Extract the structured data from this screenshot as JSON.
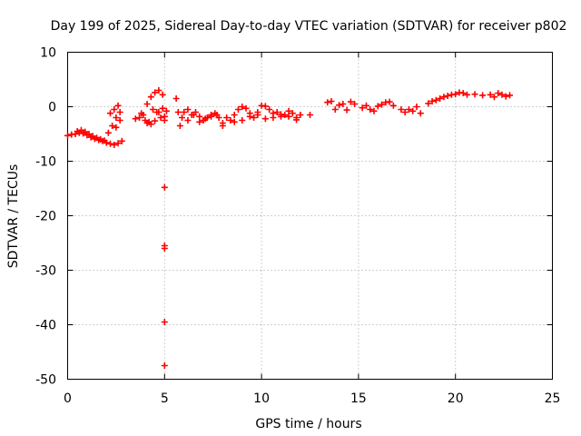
{
  "chart_data": {
    "type": "scatter",
    "title": "Day 199 of 2025, Sidereal Day-to-day VTEC variation (SDTVAR) for receiver p802",
    "xlabel": "GPS time / hours",
    "ylabel": "SDTVAR / TECUs",
    "xlim": [
      0,
      25
    ],
    "ylim": [
      -50,
      10
    ],
    "xticks": [
      0,
      5,
      10,
      15,
      20,
      25
    ],
    "yticks": [
      10,
      0,
      -10,
      -20,
      -30,
      -40,
      -50
    ],
    "grid": true,
    "marker": "plus",
    "color": "#ff0000",
    "series": [
      {
        "x": [
          0.0,
          0.2,
          0.4,
          0.6,
          0.8,
          1.0,
          1.2,
          1.4,
          1.6,
          1.8,
          2.0,
          2.2,
          2.4,
          2.6,
          2.8,
          0.5,
          0.7,
          0.9,
          1.1,
          1.3,
          1.5,
          1.7,
          1.9,
          2.1,
          2.3,
          2.5,
          2.7,
          2.2,
          2.4,
          2.6,
          2.5,
          2.7,
          3.5,
          3.7,
          3.9,
          4.1,
          4.3,
          4.5,
          4.7,
          4.9,
          3.8,
          4.0,
          4.2,
          4.4,
          4.6,
          4.8,
          4.1,
          4.3,
          4.5,
          4.7,
          4.9,
          5.0,
          5.0,
          5.0,
          5.0,
          5.0,
          5.0,
          5.0,
          5.1,
          5.6,
          5.7,
          5.8,
          5.9,
          6.0,
          6.2,
          6.4,
          6.6,
          6.8,
          7.0,
          7.2,
          7.4,
          7.6,
          7.8,
          8.0,
          6.2,
          6.5,
          6.8,
          7.1,
          7.4,
          7.7,
          8.0,
          8.2,
          8.4,
          8.6,
          8.8,
          9.0,
          9.2,
          9.4,
          9.6,
          9.8,
          10.0,
          10.2,
          10.4,
          10.6,
          10.8,
          11.0,
          11.2,
          11.4,
          11.6,
          11.8,
          12.0,
          8.6,
          9.0,
          9.4,
          9.8,
          10.2,
          10.6,
          11.0,
          11.4,
          11.8,
          12.5,
          13.4,
          13.6,
          13.8,
          14.0,
          14.2,
          14.4,
          14.6,
          14.8,
          15.2,
          15.4,
          15.6,
          15.8,
          16.0,
          16.2,
          16.4,
          16.6,
          16.8,
          17.2,
          17.4,
          17.6,
          17.8,
          18.0,
          18.2,
          18.6,
          18.8,
          19.0,
          19.2,
          19.4,
          19.6,
          19.8,
          20.0,
          20.2,
          20.4,
          20.6,
          21.0,
          21.4,
          21.8,
          22.0,
          22.2,
          22.4,
          22.6,
          22.8
        ],
        "y": [
          -5.3,
          -5.1,
          -5.0,
          -4.8,
          -4.9,
          -5.2,
          -5.6,
          -5.9,
          -6.1,
          -6.3,
          -6.6,
          -6.8,
          -7.0,
          -6.7,
          -6.3,
          -4.5,
          -4.3,
          -4.6,
          -5.0,
          -5.4,
          -5.7,
          -6.0,
          -6.2,
          -4.8,
          -3.5,
          -2.0,
          -1.0,
          -1.2,
          -0.5,
          0.2,
          -3.8,
          -2.5,
          -2.2,
          -2.0,
          -1.5,
          0.5,
          1.8,
          2.6,
          3.0,
          2.2,
          -1.2,
          -2.5,
          -2.8,
          -0.5,
          -1.0,
          -2.0,
          -3.0,
          -3.2,
          -2.6,
          -1.0,
          -0.3,
          -14.8,
          -25.5,
          -26.0,
          -39.5,
          -47.5,
          -2.5,
          -1.8,
          -0.8,
          1.5,
          -1.0,
          -3.5,
          -2.0,
          -1.0,
          -2.5,
          -1.5,
          -1.0,
          -1.8,
          -2.5,
          -2.0,
          -1.5,
          -1.2,
          -2.0,
          -3.0,
          -0.5,
          -1.5,
          -2.8,
          -2.2,
          -1.8,
          -1.5,
          -3.5,
          -2.0,
          -2.5,
          -1.5,
          -0.5,
          0.0,
          -0.3,
          -1.2,
          -2.0,
          -1.0,
          0.2,
          0.1,
          -0.5,
          -1.2,
          -1.0,
          -1.8,
          -1.5,
          -0.8,
          -1.2,
          -2.0,
          -1.5,
          -2.8,
          -2.5,
          -1.8,
          -1.5,
          -2.2,
          -2.0,
          -1.4,
          -1.8,
          -2.4,
          -1.5,
          0.8,
          1.0,
          -0.5,
          0.3,
          0.5,
          -0.6,
          0.9,
          0.5,
          -0.2,
          0.2,
          -0.5,
          -0.8,
          0.1,
          0.4,
          0.8,
          0.9,
          0.2,
          -0.5,
          -1.0,
          -0.5,
          -0.8,
          0.0,
          -1.2,
          0.6,
          1.0,
          1.2,
          1.5,
          1.8,
          2.0,
          2.2,
          2.3,
          2.6,
          2.5,
          2.2,
          2.3,
          2.1,
          2.2,
          1.8,
          2.5,
          2.2,
          1.9,
          2.1
        ]
      }
    ]
  }
}
